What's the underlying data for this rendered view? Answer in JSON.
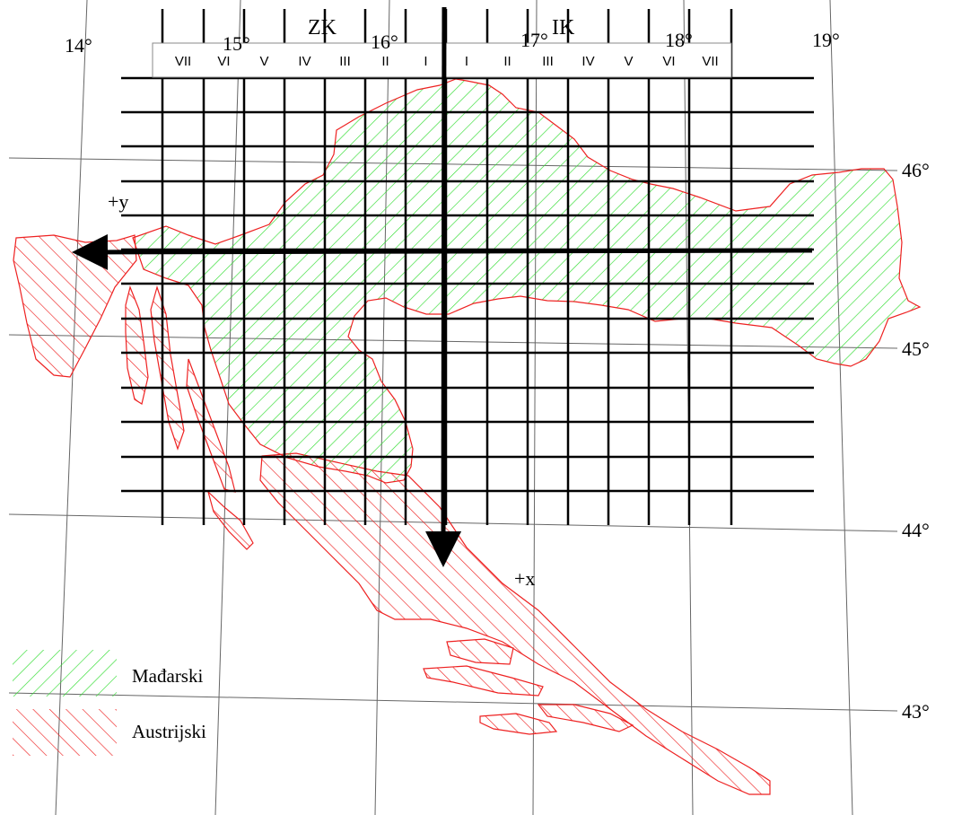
{
  "map": {
    "longitude_labels": [
      "14°",
      "15°",
      "16°",
      "17°",
      "18°",
      "19°"
    ],
    "latitude_labels": [
      "46°",
      "45°",
      "44°",
      "43°"
    ],
    "zone_west_label": "ZK",
    "zone_east_label": "IK",
    "columns_west": [
      "VII",
      "VI",
      "V",
      "IV",
      "III",
      "II",
      "I"
    ],
    "columns_east": [
      "I",
      "II",
      "III",
      "IV",
      "V",
      "VI",
      "VII"
    ],
    "axis_y_label": "+y",
    "axis_x_label": "+x"
  },
  "legend": [
    {
      "label": "Mađarski",
      "color": "#33dd33",
      "pattern": "hatch-green"
    },
    {
      "label": "Austrijski",
      "color": "#ee2222",
      "pattern": "hatch-red"
    }
  ],
  "colors": {
    "hungarian": "#33dd33",
    "austrian": "#ee2222",
    "grid": "#000000",
    "graticule": "#555555"
  }
}
